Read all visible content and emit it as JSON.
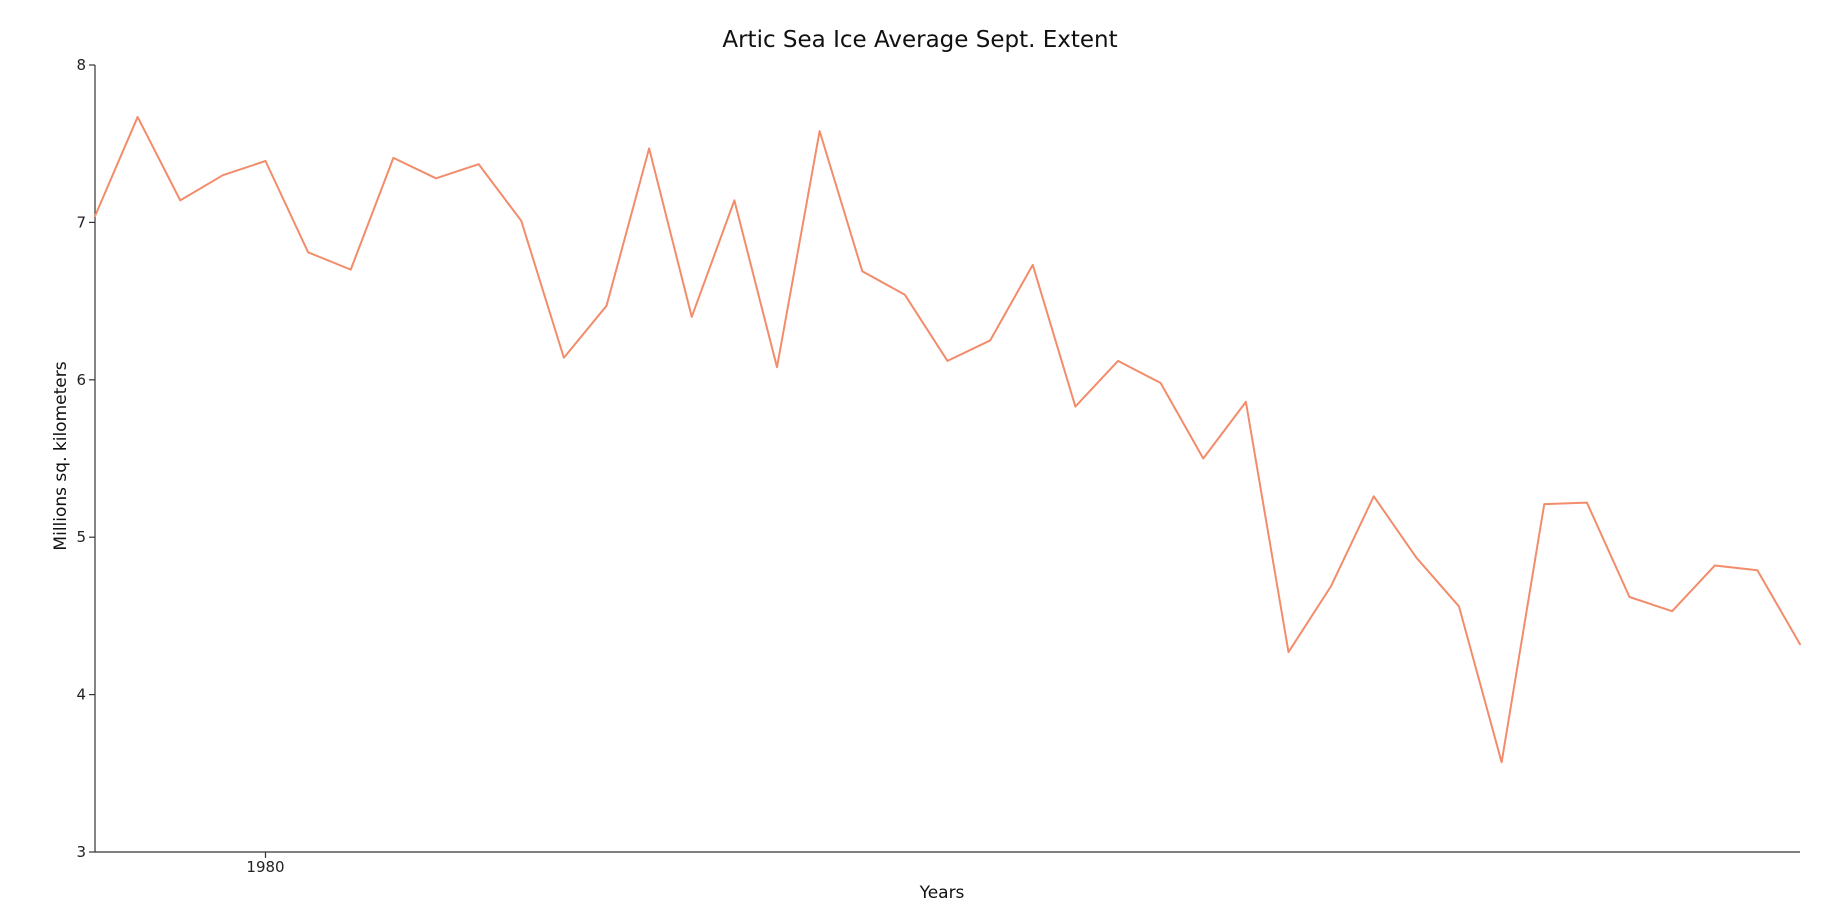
{
  "chart_data": {
    "type": "line",
    "title": "Artic Sea Ice Average Sept. Extent",
    "xlabel": "Years",
    "ylabel": "Millions sq. kilometers",
    "xlim": [
      1976,
      2016
    ],
    "ylim": [
      3,
      8
    ],
    "yticks": [
      3,
      4,
      5,
      6,
      7,
      8
    ],
    "xticks": [
      1980
    ],
    "grid": false,
    "legend": "none",
    "line_color": "#f28c6b",
    "series": [
      {
        "x": [
          1976,
          1977,
          1978,
          1979,
          1980,
          1981,
          1982,
          1983,
          1984,
          1985,
          1986,
          1987,
          1988,
          1989,
          1990,
          1991,
          1992,
          1993,
          1994,
          1995,
          1996,
          1997,
          1998,
          1999,
          2000,
          2001,
          2002,
          2003,
          2004,
          2005,
          2006,
          2007,
          2008,
          2009,
          2010,
          2011,
          2012,
          2013,
          2014,
          2015,
          2016
        ],
        "values": [
          7.04,
          7.67,
          7.14,
          7.3,
          7.39,
          6.81,
          6.7,
          7.41,
          7.28,
          7.37,
          7.01,
          6.14,
          6.47,
          7.47,
          6.4,
          7.14,
          6.08,
          7.58,
          6.69,
          6.54,
          6.12,
          6.25,
          6.73,
          5.83,
          6.12,
          5.98,
          5.5,
          5.86,
          4.27,
          4.69,
          5.26,
          4.87,
          4.56,
          3.57,
          5.21,
          5.22,
          4.62,
          4.53,
          4.82,
          4.79,
          4.32
        ]
      }
    ]
  }
}
